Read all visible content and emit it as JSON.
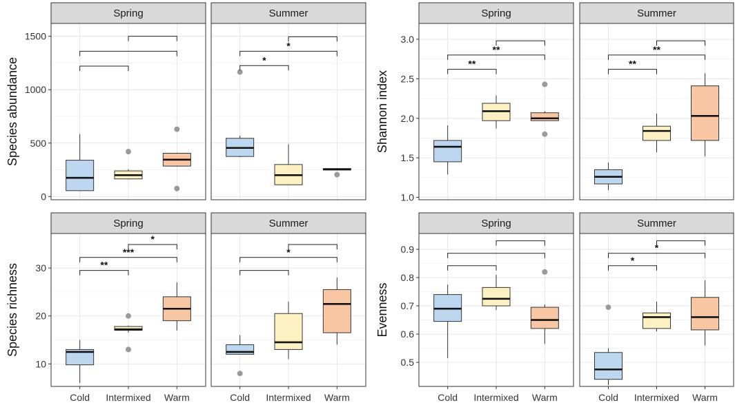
{
  "figure": {
    "x_categories": [
      "Cold",
      "Intermixed",
      "Warm"
    ],
    "colors": {
      "Cold": "#bcd7ef",
      "Intermixed": "#fdf1c4",
      "Warm": "#f9c6a3"
    },
    "box_stroke": "#333333",
    "strip_fill": "#d9d9d9",
    "grid_color": "#e6e6e6",
    "outlier_color": "#9a9a9a"
  },
  "chart_data": [
    {
      "type": "boxplot",
      "panel": "abundance-spring",
      "ylabel": "Species abundance",
      "facet": "Spring",
      "ylim": [
        -30,
        1620
      ],
      "yticks": [
        0,
        500,
        1000,
        1500
      ],
      "categories": [
        "Cold",
        "Intermixed",
        "Warm"
      ],
      "boxes": [
        {
          "min": 50,
          "q1": 55,
          "median": 175,
          "q3": 340,
          "max": 585,
          "outliers": []
        },
        {
          "min": 160,
          "q1": 165,
          "median": 200,
          "q3": 240,
          "max": 255,
          "outliers": [
            420
          ]
        },
        {
          "min": 280,
          "q1": 285,
          "median": 345,
          "q3": 405,
          "max": 410,
          "outliers": [
            630,
            75
          ]
        }
      ],
      "brackets": [
        {
          "from": "Cold",
          "to": "Intermixed",
          "y": 1220,
          "label": ""
        },
        {
          "from": "Cold",
          "to": "Warm",
          "y": 1360,
          "label": ""
        },
        {
          "from": "Intermixed",
          "to": "Warm",
          "y": 1500,
          "label": ""
        }
      ]
    },
    {
      "type": "boxplot",
      "panel": "abundance-summer",
      "ylabel": "",
      "facet": "Summer",
      "ylim": [
        -30,
        1620
      ],
      "yticks": [
        0,
        500,
        1000,
        1500
      ],
      "categories": [
        "Cold",
        "Intermixed",
        "Warm"
      ],
      "boxes": [
        {
          "min": 370,
          "q1": 375,
          "median": 455,
          "q3": 545,
          "max": 570,
          "outliers": [
            1165
          ]
        },
        {
          "min": 105,
          "q1": 110,
          "median": 200,
          "q3": 300,
          "max": 490,
          "outliers": []
        },
        {
          "min": 245,
          "q1": 248,
          "median": 255,
          "q3": 262,
          "max": 265,
          "outliers": [
            205
          ]
        }
      ],
      "brackets": [
        {
          "from": "Cold",
          "to": "Intermixed",
          "y": 1225,
          "label": "*"
        },
        {
          "from": "Cold",
          "to": "Warm",
          "y": 1360,
          "label": "*"
        },
        {
          "from": "Intermixed",
          "to": "Warm",
          "y": 1495,
          "label": ""
        }
      ]
    },
    {
      "type": "boxplot",
      "panel": "shannon-spring",
      "ylabel": "Shannon index",
      "facet": "Spring",
      "ylim": [
        0.97,
        3.2
      ],
      "yticks": [
        1.0,
        1.5,
        2.0,
        2.5,
        3.0
      ],
      "decimals": 1,
      "categories": [
        "Cold",
        "Intermixed",
        "Warm"
      ],
      "boxes": [
        {
          "min": 1.29,
          "q1": 1.45,
          "median": 1.64,
          "q3": 1.72,
          "max": 1.91,
          "outliers": []
        },
        {
          "min": 1.87,
          "q1": 1.97,
          "median": 2.09,
          "q3": 2.19,
          "max": 2.29,
          "outliers": []
        },
        {
          "min": 1.97,
          "q1": 1.97,
          "median": 2.0,
          "q3": 2.07,
          "max": 2.09,
          "outliers": [
            2.43,
            1.8
          ]
        }
      ],
      "brackets": [
        {
          "from": "Cold",
          "to": "Intermixed",
          "y": 2.62,
          "label": "**"
        },
        {
          "from": "Cold",
          "to": "Warm",
          "y": 2.8,
          "label": "**"
        },
        {
          "from": "Intermixed",
          "to": "Warm",
          "y": 2.98,
          "label": ""
        }
      ]
    },
    {
      "type": "boxplot",
      "panel": "shannon-summer",
      "ylabel": "",
      "facet": "Summer",
      "ylim": [
        0.97,
        3.2
      ],
      "yticks": [
        1.0,
        1.5,
        2.0,
        2.5,
        3.0
      ],
      "decimals": 1,
      "categories": [
        "Cold",
        "Intermixed",
        "Warm"
      ],
      "boxes": [
        {
          "min": 1.09,
          "q1": 1.17,
          "median": 1.26,
          "q3": 1.35,
          "max": 1.44,
          "outliers": []
        },
        {
          "min": 1.57,
          "q1": 1.72,
          "median": 1.84,
          "q3": 1.9,
          "max": 2.06,
          "outliers": []
        },
        {
          "min": 1.52,
          "q1": 1.72,
          "median": 2.03,
          "q3": 2.41,
          "max": 2.57,
          "outliers": []
        }
      ],
      "brackets": [
        {
          "from": "Cold",
          "to": "Intermixed",
          "y": 2.62,
          "label": "**"
        },
        {
          "from": "Cold",
          "to": "Warm",
          "y": 2.8,
          "label": "**"
        },
        {
          "from": "Intermixed",
          "to": "Warm",
          "y": 2.98,
          "label": ""
        }
      ]
    },
    {
      "type": "boxplot",
      "panel": "richness-spring",
      "ylabel": "Species richness",
      "facet": "Spring",
      "ylim": [
        5.3,
        37.2
      ],
      "yticks": [
        10,
        20,
        30
      ],
      "categories": [
        "Cold",
        "Intermixed",
        "Warm"
      ],
      "boxes": [
        {
          "min": 6,
          "q1": 9.8,
          "median": 12.5,
          "q3": 13,
          "max": 15,
          "outliers": []
        },
        {
          "min": 16.5,
          "q1": 17,
          "median": 17.2,
          "q3": 17.8,
          "max": 18,
          "outliers": [
            20,
            13
          ]
        },
        {
          "min": 17,
          "q1": 19,
          "median": 21.5,
          "q3": 24,
          "max": 27,
          "outliers": []
        }
      ],
      "brackets": [
        {
          "from": "Cold",
          "to": "Intermixed",
          "y": 29.5,
          "label": "**"
        },
        {
          "from": "Cold",
          "to": "Warm",
          "y": 32.2,
          "label": "***"
        },
        {
          "from": "Intermixed",
          "to": "Warm",
          "y": 34.9,
          "label": "*"
        }
      ]
    },
    {
      "type": "boxplot",
      "panel": "richness-summer",
      "ylabel": "",
      "facet": "Summer",
      "ylim": [
        5.3,
        37.2
      ],
      "yticks": [
        10,
        20,
        30
      ],
      "categories": [
        "Cold",
        "Intermixed",
        "Warm"
      ],
      "boxes": [
        {
          "min": 12,
          "q1": 12,
          "median": 12.5,
          "q3": 14,
          "max": 16,
          "outliers": [
            8
          ]
        },
        {
          "min": 11,
          "q1": 13,
          "median": 14.5,
          "q3": 20.5,
          "max": 23,
          "outliers": []
        },
        {
          "min": 14,
          "q1": 16.5,
          "median": 22.5,
          "q3": 25.5,
          "max": 28,
          "outliers": []
        }
      ],
      "brackets": [
        {
          "from": "Cold",
          "to": "Intermixed",
          "y": 29.5,
          "label": ""
        },
        {
          "from": "Cold",
          "to": "Warm",
          "y": 32.2,
          "label": "*"
        },
        {
          "from": "Intermixed",
          "to": "Warm",
          "y": 34.9,
          "label": ""
        }
      ]
    },
    {
      "type": "boxplot",
      "panel": "evenness-spring",
      "ylabel": "Evenness",
      "facet": "Spring",
      "ylim": [
        0.415,
        0.956
      ],
      "yticks": [
        0.5,
        0.6,
        0.7,
        0.8,
        0.9
      ],
      "decimals": 1,
      "categories": [
        "Cold",
        "Intermixed",
        "Warm"
      ],
      "boxes": [
        {
          "min": 0.515,
          "q1": 0.645,
          "median": 0.69,
          "q3": 0.74,
          "max": 0.775,
          "outliers": []
        },
        {
          "min": 0.685,
          "q1": 0.7,
          "median": 0.725,
          "q3": 0.765,
          "max": 0.81,
          "outliers": []
        },
        {
          "min": 0.565,
          "q1": 0.62,
          "median": 0.65,
          "q3": 0.695,
          "max": 0.705,
          "outliers": [
            0.82
          ]
        }
      ],
      "brackets": [
        {
          "from": "Cold",
          "to": "Intermixed",
          "y": 0.842,
          "label": ""
        },
        {
          "from": "Cold",
          "to": "Warm",
          "y": 0.886,
          "label": ""
        },
        {
          "from": "Intermixed",
          "to": "Warm",
          "y": 0.93,
          "label": ""
        }
      ]
    },
    {
      "type": "boxplot",
      "panel": "evenness-summer",
      "ylabel": "",
      "facet": "Summer",
      "ylim": [
        0.415,
        0.956
      ],
      "yticks": [
        0.5,
        0.6,
        0.7,
        0.8,
        0.9
      ],
      "decimals": 1,
      "categories": [
        "Cold",
        "Intermixed",
        "Warm"
      ],
      "boxes": [
        {
          "min": 0.42,
          "q1": 0.44,
          "median": 0.475,
          "q3": 0.535,
          "max": 0.55,
          "outliers": [
            0.695
          ]
        },
        {
          "min": 0.61,
          "q1": 0.62,
          "median": 0.66,
          "q3": 0.675,
          "max": 0.715,
          "outliers": []
        },
        {
          "min": 0.56,
          "q1": 0.615,
          "median": 0.66,
          "q3": 0.73,
          "max": 0.79,
          "outliers": []
        }
      ],
      "brackets": [
        {
          "from": "Cold",
          "to": "Intermixed",
          "y": 0.842,
          "label": "*"
        },
        {
          "from": "Cold",
          "to": "Warm",
          "y": 0.886,
          "label": "*"
        },
        {
          "from": "Intermixed",
          "to": "Warm",
          "y": 0.93,
          "label": ""
        }
      ]
    }
  ]
}
